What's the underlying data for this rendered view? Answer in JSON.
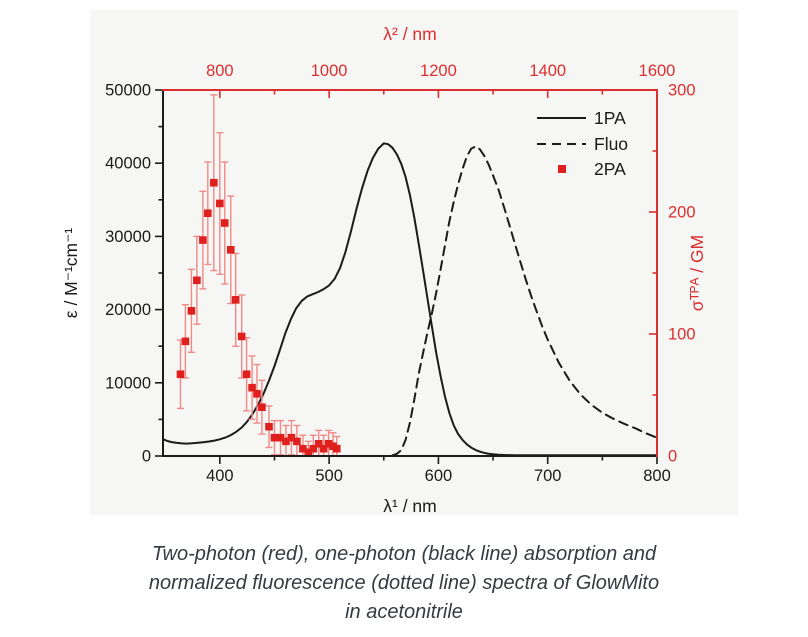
{
  "caption": {
    "lines": [
      "Two-photon (red), one-photon (black line) absorption and",
      "normalized fluorescence (dotted line) spectra of GlowMito",
      "in acetonitrile"
    ]
  },
  "colors": {
    "black": "#1b1b1b",
    "red": "#dc2f2f",
    "marker_red": "#e0201f",
    "error_red": "#ef8a87",
    "panel_bg": "#f6f6f4",
    "caption_text": "#363b42"
  },
  "chart_data": {
    "type": "line",
    "title": "",
    "grid": false,
    "legend_position": "top-right",
    "axes": {
      "bottom": {
        "label": "λ¹ / nm",
        "range": [
          348,
          800
        ],
        "ticks": [
          400,
          500,
          600,
          700,
          800
        ],
        "minor_ticks": [
          450,
          550,
          650,
          750
        ],
        "color": "#1b1b1b"
      },
      "top": {
        "label": "λ² / nm",
        "range": [
          696,
          1600
        ],
        "ticks": [
          800,
          1000,
          1200,
          1400,
          1600
        ],
        "minor_ticks": [
          900,
          1100,
          1300,
          1500
        ],
        "color": "#dc2f2f"
      },
      "left": {
        "label": "ε / M⁻¹cm⁻¹",
        "range": [
          0,
          50000
        ],
        "ticks": [
          0,
          10000,
          20000,
          30000,
          40000,
          50000
        ],
        "minor_ticks": [
          5000,
          15000,
          25000,
          35000,
          45000
        ],
        "color": "#1b1b1b"
      },
      "right": {
        "label": "σᵀᴾᴬ / GM",
        "range": [
          0,
          300
        ],
        "ticks": [
          0,
          100,
          200,
          300
        ],
        "minor_ticks": [
          50,
          150,
          250
        ],
        "color": "#dc2f2f"
      }
    },
    "series": [
      {
        "name": "1PA",
        "kind": "line",
        "style": "solid",
        "axis_x": "bottom",
        "axis_y": "left",
        "color": "#1b1b1b",
        "x": [
          348,
          352,
          356,
          360,
          365,
          370,
          375,
          380,
          385,
          390,
          395,
          400,
          405,
          410,
          415,
          420,
          425,
          430,
          435,
          440,
          445,
          450,
          455,
          460,
          465,
          470,
          475,
          480,
          485,
          490,
          495,
          500,
          505,
          510,
          515,
          520,
          525,
          530,
          535,
          540,
          545,
          550,
          554,
          558,
          562,
          566,
          570,
          574,
          578,
          582,
          586,
          590,
          594,
          598,
          602,
          606,
          610,
          614,
          618,
          622,
          626,
          630,
          635,
          640,
          645,
          650,
          655,
          660,
          670,
          680,
          700,
          720,
          750,
          800
        ],
        "y": [
          2300,
          2050,
          1900,
          1800,
          1720,
          1700,
          1730,
          1800,
          1880,
          1980,
          2100,
          2280,
          2520,
          2850,
          3300,
          3900,
          4700,
          5750,
          7000,
          8500,
          10300,
          12300,
          14500,
          16800,
          18700,
          20200,
          21200,
          21800,
          22100,
          22400,
          22800,
          23300,
          24200,
          25700,
          27900,
          30700,
          33700,
          36500,
          38900,
          40700,
          42000,
          42700,
          42600,
          42100,
          41200,
          39900,
          38100,
          35600,
          32500,
          29000,
          25300,
          21500,
          17700,
          14100,
          10900,
          8100,
          5900,
          4200,
          3000,
          2200,
          1600,
          1150,
          750,
          500,
          330,
          230,
          170,
          140,
          110,
          100,
          90,
          90,
          90,
          90
        ]
      },
      {
        "name": "Fluo",
        "kind": "line",
        "style": "dashed",
        "axis_x": "bottom",
        "axis_y": "left",
        "color": "#1b1b1b",
        "x": [
          558,
          562,
          566,
          570,
          574,
          578,
          582,
          586,
          590,
          594,
          598,
          602,
          606,
          610,
          614,
          618,
          622,
          626,
          630,
          634,
          638,
          642,
          646,
          650,
          655,
          660,
          665,
          670,
          675,
          680,
          685,
          690,
          695,
          700,
          710,
          720,
          730,
          740,
          750,
          760,
          770,
          780,
          790,
          800
        ],
        "y": [
          100,
          300,
          800,
          2200,
          4600,
          7800,
          11200,
          14100,
          16900,
          19500,
          22300,
          25500,
          28800,
          32000,
          34700,
          37100,
          39200,
          40900,
          42000,
          42300,
          41900,
          41000,
          39800,
          38300,
          36400,
          34000,
          31500,
          29000,
          26500,
          24100,
          21800,
          19700,
          17700,
          15900,
          12800,
          10300,
          8400,
          7000,
          5900,
          5100,
          4400,
          3800,
          3100,
          2500
        ]
      },
      {
        "name": "2PA",
        "kind": "scatter",
        "marker": "square",
        "axis_x": "top",
        "axis_y": "right",
        "color": "#e0201f",
        "error_color": "#ef8a87",
        "x": [
          728,
          737,
          748,
          758,
          769,
          778,
          789,
          800,
          809,
          820,
          829,
          840,
          849,
          859,
          868,
          877,
          890,
          900,
          911,
          921,
          931,
          941,
          952,
          962,
          971,
          981,
          990,
          999,
          1007,
          1014
        ],
        "y": [
          67,
          94,
          119,
          144,
          177,
          199,
          224,
          207,
          191,
          169,
          128,
          98,
          67,
          56,
          51,
          40,
          24,
          15,
          15,
          12,
          15,
          12,
          6,
          3,
          6,
          10,
          6,
          10,
          8,
          6
        ],
        "yerr": [
          28,
          30,
          34,
          36,
          40,
          42,
          72,
          58,
          50,
          44,
          38,
          34,
          30,
          26,
          24,
          22,
          17,
          14,
          14,
          13,
          14,
          13,
          11,
          9,
          11,
          11,
          11,
          11,
          11,
          10
        ]
      }
    ],
    "legend": [
      {
        "label": "1PA",
        "swatch": "solid-line"
      },
      {
        "label": "Fluo",
        "swatch": "dashed-line"
      },
      {
        "label": "2PA",
        "swatch": "red-square"
      }
    ]
  }
}
